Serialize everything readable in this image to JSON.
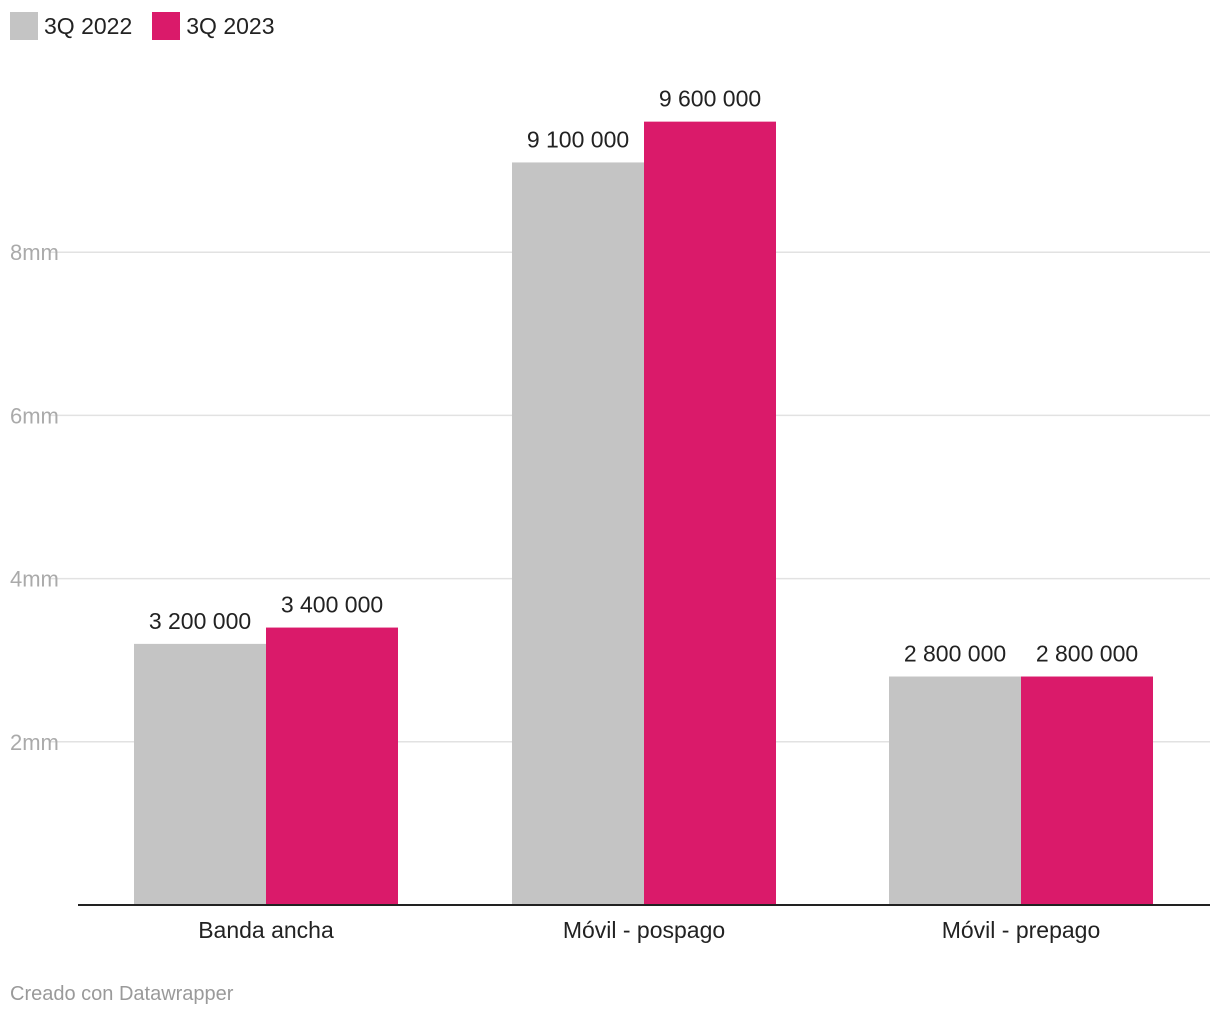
{
  "chart_data": {
    "type": "bar",
    "title": "",
    "xlabel": "",
    "ylabel": "",
    "categories": [
      "Banda ancha",
      "Móvil - pospago",
      "Móvil - prepago"
    ],
    "series": [
      {
        "name": "3Q 2022",
        "color": "#c4c4c4",
        "values": [
          3200000,
          9100000,
          2800000
        ],
        "labels": [
          "3 200 000",
          "9 100 000",
          "2 800 000"
        ]
      },
      {
        "name": "3Q 2023",
        "color": "#da1a6a",
        "values": [
          3400000,
          9600000,
          2800000
        ],
        "labels": [
          "3 400 000",
          "9 600 000",
          "2 800 000"
        ]
      }
    ],
    "ylim": [
      0,
      10000000
    ],
    "yticks": [
      {
        "value": 2000000,
        "label": "2mm"
      },
      {
        "value": 4000000,
        "label": "4mm"
      },
      {
        "value": 6000000,
        "label": "6mm"
      },
      {
        "value": 8000000,
        "label": "8mm"
      }
    ],
    "grid": true,
    "legend_position": "top-left"
  },
  "footer": {
    "credit": "Creado con Datawrapper"
  }
}
